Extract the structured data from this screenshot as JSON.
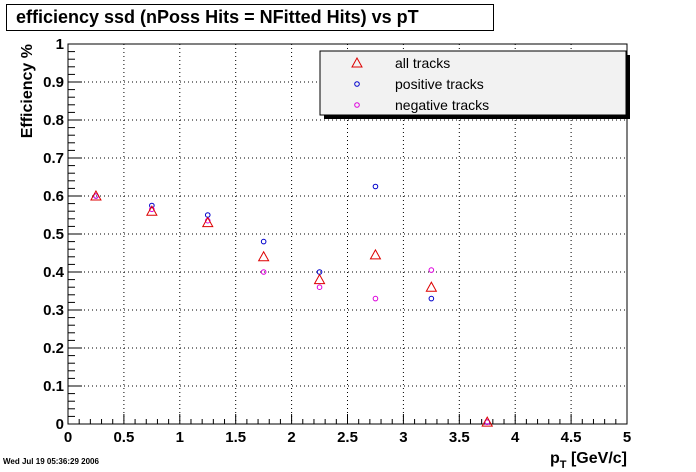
{
  "title": "efficiency ssd (nPoss Hits = NFitted Hits) vs pT",
  "timestamp": "Wed Jul 19 05:36:29 2006",
  "colors": {
    "all": "#dd0000",
    "positive": "#0000cc",
    "negative": "#dd00dd",
    "grid": "#000000"
  },
  "chart_data": {
    "type": "scatter",
    "title": "efficiency ssd (nPoss Hits = NFitted Hits) vs pT",
    "xlabel_main": "p",
    "xlabel_sub": "T",
    "xlabel_unit": " [GeV/c]",
    "ylabel": "Efficiency %",
    "xlim": [
      0,
      5
    ],
    "ylim": [
      0,
      1
    ],
    "grid": true,
    "legend_position": "top-right",
    "x_ticks": [
      "0",
      "0.5",
      "1",
      "1.5",
      "2",
      "2.5",
      "3",
      "3.5",
      "4",
      "4.5",
      "5"
    ],
    "y_ticks": [
      "0",
      "0.1",
      "0.2",
      "0.3",
      "0.4",
      "0.5",
      "0.6",
      "0.7",
      "0.8",
      "0.9",
      "1"
    ],
    "x": [
      0.25,
      0.75,
      1.25,
      1.75,
      2.25,
      2.75,
      3.25,
      3.75
    ],
    "series": [
      {
        "name": "all tracks",
        "marker": "triangle",
        "values": [
          0.6,
          0.56,
          0.53,
          0.44,
          0.38,
          0.445,
          0.36,
          0.005
        ]
      },
      {
        "name": "positive tracks",
        "marker": "circle",
        "values": [
          0.6,
          0.575,
          0.55,
          0.48,
          0.4,
          0.625,
          0.33,
          0.005
        ]
      },
      {
        "name": "negative tracks",
        "marker": "circle",
        "values": [
          0.6,
          0.565,
          0.535,
          0.4,
          0.36,
          0.33,
          0.405,
          0.005
        ]
      }
    ]
  }
}
